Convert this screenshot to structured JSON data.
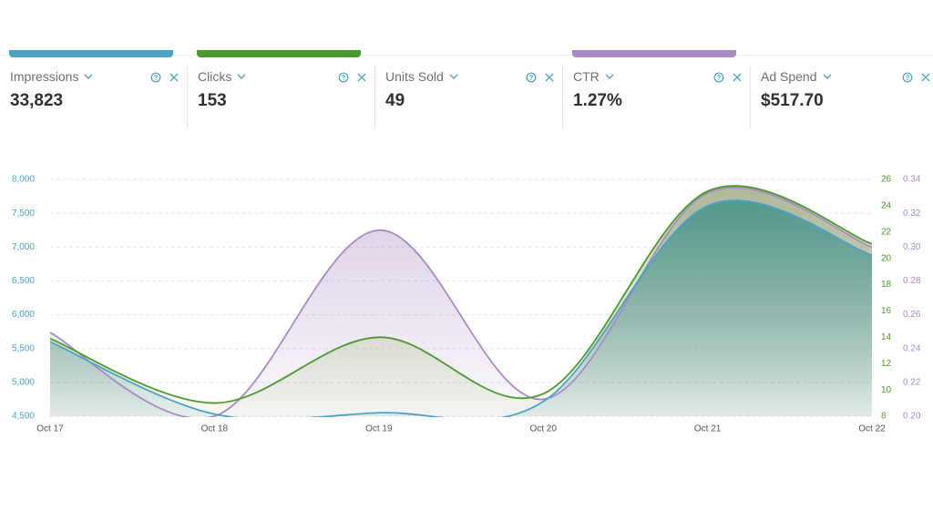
{
  "metrics": [
    {
      "label": "Impressions",
      "value": "33,823"
    },
    {
      "label": "Clicks",
      "value": "153"
    },
    {
      "label": "Units Sold",
      "value": "49"
    },
    {
      "label": "CTR",
      "value": "1.27%"
    },
    {
      "label": "Ad Spend",
      "value": "$517.70"
    }
  ],
  "chart_data": {
    "type": "line",
    "x": [
      "Oct 17",
      "Oct 18",
      "Oct 19",
      "Oct 20",
      "Oct 21",
      "Oct 22"
    ],
    "series": [
      {
        "color": "#a98bc2",
        "axis": "y3",
        "values": [
          0.2495,
          0.2,
          0.31,
          0.21,
          0.332,
          0.3
        ]
      },
      {
        "color": "#4b9a2c",
        "axis": "y2",
        "values": [
          13.9,
          9,
          14,
          9.7,
          25.1,
          21.1
        ]
      },
      {
        "color": "#4aa3c4",
        "axis": "y",
        "values": [
          5600,
          4530,
          4550,
          4715,
          7610,
          6880
        ]
      }
    ],
    "ylim": [
      4500,
      8000
    ],
    "yticks": [
      {
        "value": 4500,
        "label": "4,500"
      },
      {
        "value": 5000,
        "label": "5,000"
      },
      {
        "value": 5500,
        "label": "5,500"
      },
      {
        "value": 6000,
        "label": "6,000"
      },
      {
        "value": 6500,
        "label": "6,500"
      },
      {
        "value": 7000,
        "label": "7,000"
      },
      {
        "value": 7500,
        "label": "7,500"
      },
      {
        "value": 8000,
        "label": "8,000"
      }
    ],
    "y2lim": [
      8,
      26
    ],
    "y2ticks": [
      8,
      10,
      12,
      14,
      16,
      18,
      20,
      22,
      24,
      26
    ],
    "y3lim": [
      0.2,
      0.34
    ],
    "y3ticks": [
      {
        "value": 0.2,
        "label": "0.20"
      },
      0.22,
      0.24,
      0.26,
      0.28,
      {
        "value": 0.3,
        "label": "0.30"
      },
      0.32,
      0.34
    ],
    "grid": true
  }
}
